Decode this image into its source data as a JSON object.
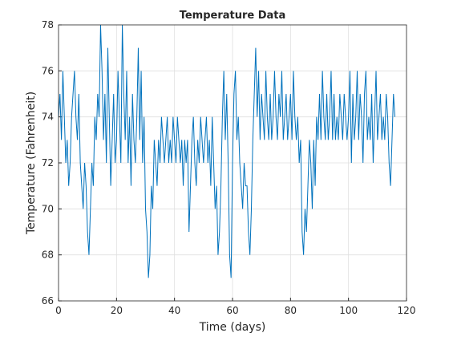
{
  "chart_data": {
    "type": "line",
    "title": "Temperature Data",
    "xlabel": "Time (days)",
    "ylabel": "Temperature (Fahrenheit)",
    "color": "#0072bd",
    "grid": true,
    "xlim": [
      0,
      120
    ],
    "xticks": [
      0,
      20,
      40,
      60,
      80,
      100,
      120
    ],
    "ylim": [
      66,
      78
    ],
    "yticks": [
      66,
      68,
      70,
      72,
      74,
      76,
      78
    ],
    "x": [
      0,
      0.5,
      1,
      1.5,
      2,
      2.5,
      3,
      3.5,
      4,
      4.5,
      5,
      5.5,
      6,
      6.5,
      7,
      7.5,
      8,
      8.5,
      9,
      9.5,
      10,
      10.5,
      11,
      11.5,
      12,
      12.5,
      13,
      13.5,
      14,
      14.5,
      15,
      15.5,
      16,
      16.5,
      17,
      17.5,
      18,
      18.5,
      19,
      19.5,
      20,
      20.5,
      21,
      21.5,
      22,
      22.5,
      23,
      23.5,
      24,
      24.5,
      25,
      25.5,
      26,
      26.5,
      27,
      27.5,
      28,
      28.5,
      29,
      29.5,
      30,
      30.5,
      31,
      31.5,
      32,
      32.5,
      33,
      33.5,
      34,
      34.5,
      35,
      35.5,
      36,
      36.5,
      37,
      37.5,
      38,
      38.5,
      39,
      39.5,
      40,
      40.5,
      41,
      41.5,
      42,
      42.5,
      43,
      43.5,
      44,
      44.5,
      45,
      45.5,
      46,
      46.5,
      47,
      47.5,
      48,
      48.5,
      49,
      49.5,
      50,
      50.5,
      51,
      51.5,
      52,
      52.5,
      53,
      53.5,
      54,
      54.5,
      55,
      55.5,
      56,
      56.5,
      57,
      57.5,
      58,
      58.5,
      59,
      59.5,
      60,
      60.5,
      61,
      61.5,
      62,
      62.5,
      63,
      63.5,
      64,
      64.5,
      65,
      65.5,
      66,
      66.5,
      67,
      67.5,
      68,
      68.5,
      69,
      69.5,
      70,
      70.5,
      71,
      71.5,
      72,
      72.5,
      73,
      73.5,
      74,
      74.5,
      75,
      75.5,
      76,
      76.5,
      77,
      77.5,
      78,
      78.5,
      79,
      79.5,
      80,
      80.5,
      81,
      81.5,
      82,
      82.5,
      83,
      83.5,
      84,
      84.5,
      85,
      85.5,
      86,
      86.5,
      87,
      87.5,
      88,
      88.5,
      89,
      89.5,
      90,
      90.5,
      91,
      91.5,
      92,
      92.5,
      93,
      93.5,
      94,
      94.5,
      95,
      95.5,
      96,
      96.5,
      97,
      97.5,
      98,
      98.5,
      99,
      99.5,
      100,
      100.5,
      101,
      101.5,
      102,
      102.5,
      103,
      103.5,
      104,
      104.5,
      105,
      105.5,
      106,
      106.5,
      107,
      107.5,
      108,
      108.5,
      109,
      109.5,
      110,
      110.5,
      111,
      111.5,
      112,
      112.5,
      113,
      113.5,
      114,
      114.5,
      115,
      115.5,
      116
    ],
    "values": [
      74,
      75,
      73,
      76,
      74,
      72,
      73,
      71,
      72,
      74,
      75,
      76,
      74,
      73,
      75,
      72,
      71,
      70,
      72,
      71,
      69,
      68,
      70,
      72,
      71,
      74,
      73,
      75,
      74,
      78,
      76,
      73,
      75,
      72,
      77,
      74,
      71,
      73,
      75,
      72,
      73,
      76,
      74,
      72,
      78,
      75,
      73,
      76,
      72,
      74,
      71,
      75,
      73,
      72,
      74,
      77,
      73,
      76,
      72,
      74,
      70,
      69,
      67,
      68,
      71,
      70,
      73,
      72,
      71,
      73,
      72,
      74,
      73,
      72,
      73,
      74,
      72,
      73,
      72,
      74,
      73,
      72,
      74,
      73,
      72,
      73,
      71,
      73,
      72,
      73,
      69,
      71,
      73,
      74,
      72,
      71,
      73,
      72,
      74,
      73,
      72,
      73,
      74,
      72,
      73,
      71,
      74,
      72,
      70,
      71,
      68,
      69,
      71,
      74,
      76,
      73,
      75,
      72,
      68,
      67,
      72,
      75,
      76,
      73,
      74,
      72,
      71,
      70,
      72,
      71,
      71,
      69,
      68,
      70,
      73,
      75,
      77,
      74,
      76,
      73,
      75,
      74,
      73,
      76,
      74,
      73,
      75,
      73,
      74,
      76,
      74,
      73,
      75,
      74,
      76,
      73,
      74,
      75,
      73,
      74,
      75,
      73,
      76,
      74,
      73,
      74,
      72,
      73,
      69,
      68,
      70,
      69,
      71,
      73,
      72,
      70,
      73,
      71,
      74,
      73,
      75,
      73,
      76,
      74,
      73,
      75,
      73,
      74,
      76,
      73,
      75,
      73,
      74,
      73,
      75,
      74,
      73,
      75,
      74,
      73,
      74,
      76,
      72,
      75,
      73,
      74,
      76,
      73,
      75,
      74,
      72,
      75,
      76,
      73,
      74,
      73,
      75,
      72,
      74,
      76,
      73,
      74,
      75,
      73,
      74,
      73,
      75,
      74,
      72,
      71,
      73,
      75,
      74
    ]
  }
}
